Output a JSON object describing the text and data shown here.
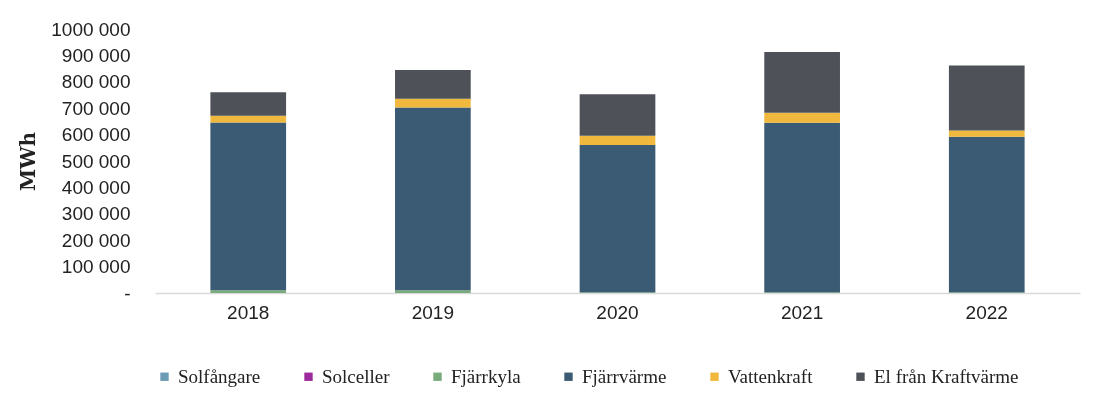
{
  "chart_data": {
    "type": "bar",
    "stacked": true,
    "ylabel": "MWh",
    "categories": [
      "2018",
      "2019",
      "2020",
      "2021",
      "2022"
    ],
    "ylim": [
      0,
      1000000
    ],
    "yticks": [
      {
        "value": 0,
        "label": "-"
      },
      {
        "value": 100000,
        "label": "100 000"
      },
      {
        "value": 200000,
        "label": "200 000"
      },
      {
        "value": 300000,
        "label": "300 000"
      },
      {
        "value": 400000,
        "label": "400 000"
      },
      {
        "value": 500000,
        "label": "500 000"
      },
      {
        "value": 600000,
        "label": "600 000"
      },
      {
        "value": 700000,
        "label": "700 000"
      },
      {
        "value": 800000,
        "label": "800 000"
      },
      {
        "value": 900000,
        "label": "900 000"
      },
      {
        "value": 1000000,
        "label": "1000 000"
      }
    ],
    "grid": false,
    "legend": "bottom",
    "series": [
      {
        "name": "Solfångare",
        "color": "#6c9bb5",
        "values": [
          0,
          0,
          0,
          0,
          0
        ]
      },
      {
        "name": "Solceller",
        "color": "#9c2a9c",
        "values": [
          0,
          0,
          0,
          0,
          0
        ]
      },
      {
        "name": "Fjärrkyla",
        "color": "#7aab7a",
        "values": [
          10000,
          10000,
          3000,
          3000,
          3000
        ]
      },
      {
        "name": "Fjärrvärme",
        "color": "#3b5a73",
        "values": [
          636000,
          693000,
          558000,
          642000,
          589000
        ]
      },
      {
        "name": "Vattenkraft",
        "color": "#f0b83c",
        "values": [
          25000,
          33000,
          35000,
          38000,
          24000
        ]
      },
      {
        "name": "El från Kraftvärme",
        "color": "#4f5159",
        "values": [
          89000,
          109000,
          157000,
          230000,
          246000
        ]
      }
    ]
  }
}
